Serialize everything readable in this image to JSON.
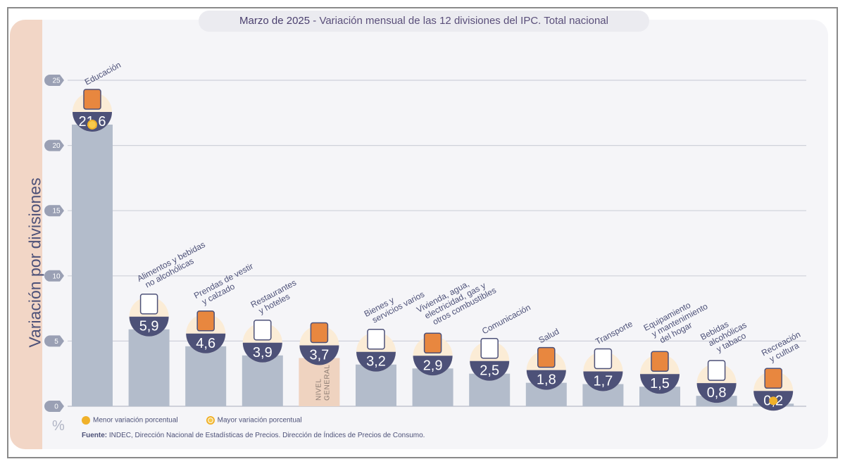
{
  "title": {
    "date": "Marzo de 2025",
    "text": " - Variación mensual de las 12 divisiones del IPC. Total nacional"
  },
  "colors": {
    "bar": "#b3bccb",
    "general_bar": "#efd3c0",
    "badge": "#4d5178",
    "dot": "#f0b12a"
  },
  "legend": {
    "menor": "Menor variación porcentual",
    "mayor": "Mayor variación porcentual"
  },
  "source": {
    "label": "Fuente:",
    "text": " INDEC, Dirección Nacional de Estadísticas de Precios. Dirección de Índices de Precios de Consumo."
  },
  "unit": "%",
  "chart_data": {
    "type": "bar",
    "ylabel": "Variación por divisiones",
    "ylim": [
      0,
      25
    ],
    "yticks": [
      0,
      5,
      10,
      15,
      20,
      25
    ],
    "grid": true,
    "categories": [
      [
        "Educación"
      ],
      [
        "Alimentos y bebidas",
        "no alcohólicas"
      ],
      [
        "Prendas de vestir",
        "y calzado"
      ],
      [
        "Restaurantes",
        "y hoteles"
      ],
      [
        "NIVEL",
        "GENERAL"
      ],
      [
        "Bienes y",
        "servicios varios"
      ],
      [
        "Vivienda, agua,",
        "electricidad, gas y",
        "otros combustibles"
      ],
      [
        "Comunicación"
      ],
      [
        "Salud"
      ],
      [
        "Transporte"
      ],
      [
        "Equipamiento",
        "y mantenimiento",
        "del hogar"
      ],
      [
        "Bebidas",
        "alcohólicas",
        "y tabaco"
      ],
      [
        "Recreación",
        "y cultura"
      ]
    ],
    "values": [
      21.6,
      5.9,
      4.6,
      3.9,
      3.7,
      3.2,
      2.9,
      2.5,
      1.8,
      1.7,
      1.5,
      0.8,
      0.2
    ],
    "value_labels": [
      "21,6",
      "5,9",
      "4,6",
      "3,9",
      "3,7",
      "3,2",
      "2,9",
      "2,5",
      "1,8",
      "1,7",
      "1,5",
      "0,8",
      "0,2"
    ],
    "icons": [
      "notebook-icon",
      "food-icon",
      "clothes-icon",
      "restaurant-icon",
      "basket-icon",
      "comb-scissors-icon",
      "lightbulb-icon",
      "phone-icon",
      "first-aid-icon",
      "bus-icon",
      "appliance-icon",
      "bottle-icon",
      "beach-umbrella-icon"
    ],
    "highlight": {
      "max": "Educación",
      "min": "Recreación y cultura"
    }
  }
}
